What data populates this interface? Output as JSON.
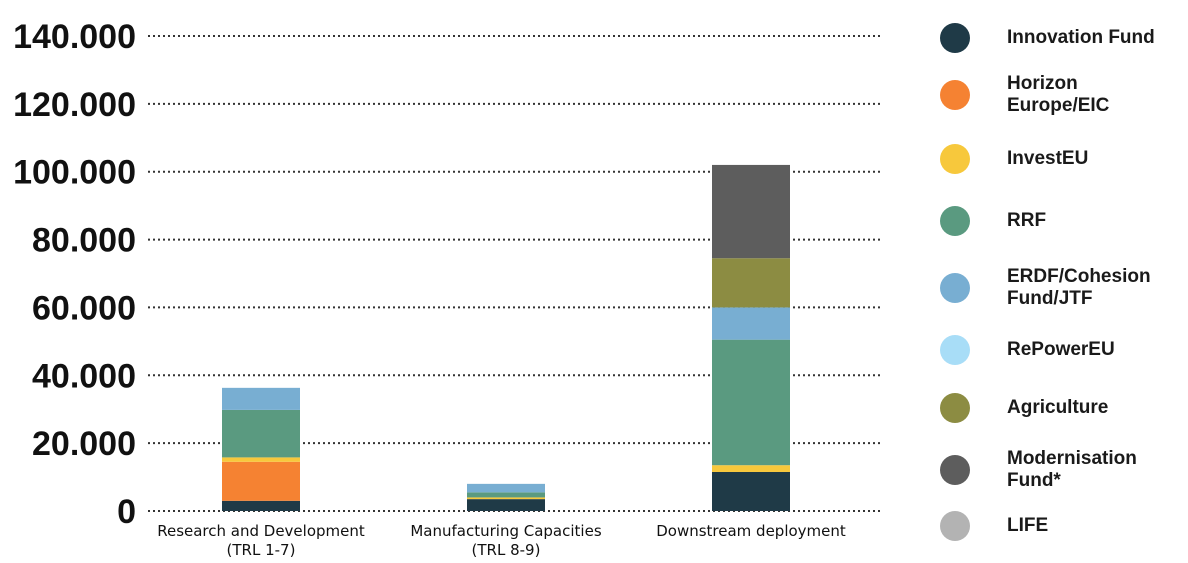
{
  "chart_data": {
    "type": "bar",
    "stacked": true,
    "categories": [
      [
        "Research and Development",
        "(TRL 1-7)"
      ],
      [
        "Manufacturing Capacities",
        "(TRL 8-9)"
      ],
      [
        "Downstream deployment"
      ]
    ],
    "series": [
      {
        "name": "Innovation Fund",
        "color": "#1f3a47",
        "values": [
          3000,
          3500,
          11500
        ]
      },
      {
        "name": "Horizon Europe/EIC",
        "color": "#f58232",
        "values": [
          11500,
          0,
          0
        ]
      },
      {
        "name": "InvestEU",
        "color": "#f7c83c",
        "values": [
          1300,
          500,
          2000
        ]
      },
      {
        "name": "RRF",
        "color": "#5a9a80",
        "values": [
          14000,
          1500,
          37000
        ]
      },
      {
        "name": "ERDF/Cohesion Fund/JTF",
        "color": "#78aed2",
        "values": [
          6500,
          2500,
          9500
        ]
      },
      {
        "name": "RePowerEU",
        "color": "#a8ddf7",
        "values": [
          0,
          0,
          0
        ]
      },
      {
        "name": "Agriculture",
        "color": "#8c8c42",
        "values": [
          0,
          0,
          14500
        ]
      },
      {
        "name": "Modernisation Fund*",
        "color": "#5d5d5d",
        "values": [
          0,
          0,
          27500
        ]
      },
      {
        "name": "LIFE",
        "color": "#b3b3b3",
        "values": [
          0,
          0,
          0
        ]
      }
    ],
    "ylim": [
      0,
      140000
    ],
    "yticks": [
      "0",
      "20.000",
      "40.000",
      "60.000",
      "80.000",
      "100.000",
      "120.000",
      "140.000"
    ],
    "ytick_values": [
      0,
      20000,
      40000,
      60000,
      80000,
      100000,
      120000,
      140000
    ],
    "grid": "dotted-horizontal",
    "legend_position": "right"
  }
}
